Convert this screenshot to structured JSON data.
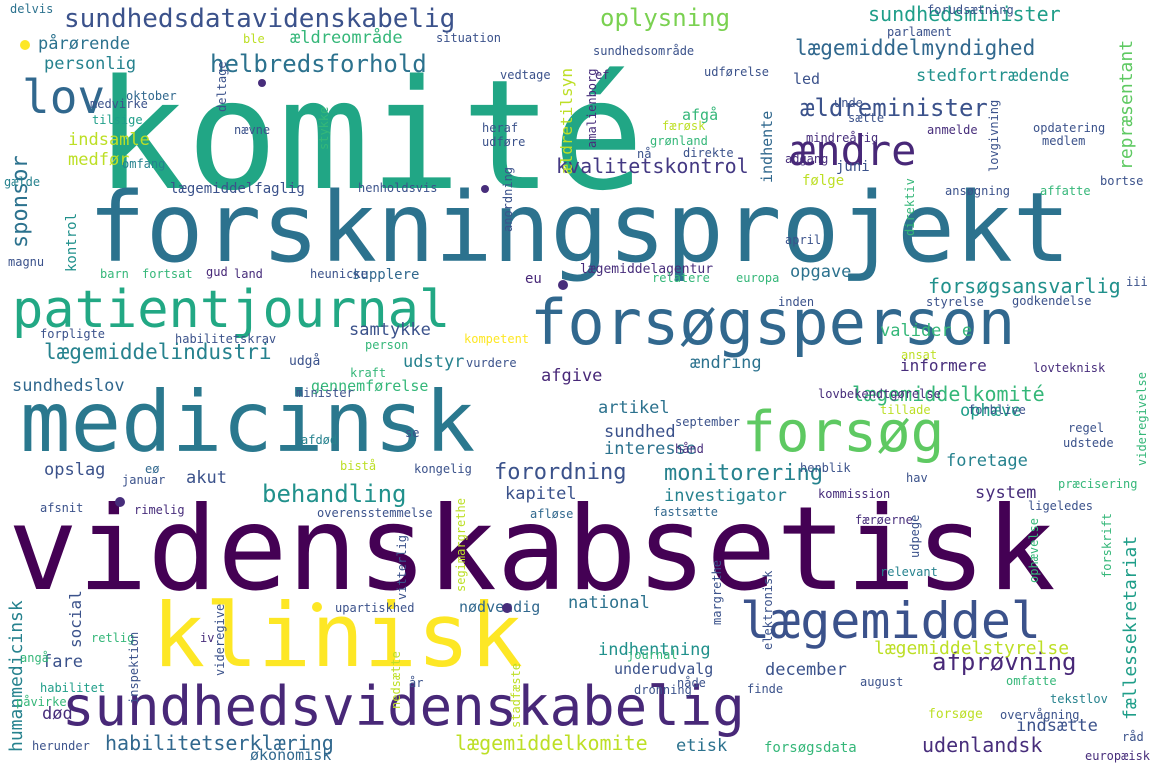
{
  "words": [
    {
      "text": "komité",
      "color": "#21a685"
    },
    {
      "text": "videnskabsetisk",
      "color": "#440154"
    },
    {
      "text": "forskningsprojekt",
      "color": "#2c728e"
    },
    {
      "text": "medicinsk",
      "color": "#2a788e"
    },
    {
      "text": "klinisk",
      "color": "#fde725"
    },
    {
      "text": "forsøgsperson",
      "color": "#31688e"
    },
    {
      "text": "sundhedsvidenskabelig",
      "color": "#482878"
    },
    {
      "text": "patientjournal",
      "color": "#22a884"
    },
    {
      "text": "lægemiddel",
      "color": "#3b528b"
    },
    {
      "text": "forsøg",
      "color": "#5ec962"
    },
    {
      "text": "lov",
      "color": "#31688e"
    },
    {
      "text": "ændre",
      "color": "#482878"
    },
    {
      "text": "sundhedsdatavidenskabelig",
      "color": "#3b528b"
    },
    {
      "text": "oplysning",
      "color": "#7ad151"
    },
    {
      "text": "sundhedsminister",
      "color": "#1f9e89"
    },
    {
      "text": "lægemiddelmyndighed",
      "color": "#31688e"
    },
    {
      "text": "helbredsforhold",
      "color": "#2c728e"
    },
    {
      "text": "ældreminister",
      "color": "#3b528b"
    },
    {
      "text": "lægemiddelindustri",
      "color": "#26828e"
    },
    {
      "text": "behandling",
      "color": "#21918c"
    },
    {
      "text": "afprøvning",
      "color": "#482878"
    },
    {
      "text": "monitorering",
      "color": "#26828e"
    },
    {
      "text": "forordning",
      "color": "#3b528b"
    },
    {
      "text": "habilitetserklæring",
      "color": "#31688e"
    },
    {
      "text": "lægemiddelkomite",
      "color": "#bddf26"
    },
    {
      "text": "lægemiddelkomité",
      "color": "#35b779"
    },
    {
      "text": "kvalitetskontrol",
      "color": "#443983"
    },
    {
      "text": "forsøgsansvarlig",
      "color": "#21918c"
    },
    {
      "text": "lægemiddelstyrelse",
      "color": "#bddf26"
    },
    {
      "text": "udenlandsk",
      "color": "#472d7b"
    },
    {
      "text": "sponsor",
      "color": "#2c728e"
    },
    {
      "text": "humanmedicinsk",
      "color": "#26828e"
    },
    {
      "text": "fællessekretariat",
      "color": "#1f9e89"
    },
    {
      "text": "repræsentant",
      "color": "#5ec962"
    },
    {
      "text": "ældretilsyn",
      "color": "#bddf26"
    },
    {
      "text": "stedfortrædende",
      "color": "#21918c"
    },
    {
      "text": "ældreområde",
      "color": "#35b779"
    },
    {
      "text": "pårørende",
      "color": "#2c728e"
    },
    {
      "text": "personlig",
      "color": "#26828e"
    },
    {
      "text": "indsamle",
      "color": "#bddf26"
    },
    {
      "text": "medfør",
      "color": "#bddf26"
    },
    {
      "text": "samtykke",
      "color": "#3b528b"
    },
    {
      "text": "udstyr",
      "color": "#26828e"
    },
    {
      "text": "opgave",
      "color": "#2c728e"
    },
    {
      "text": "valider e",
      "color": "#35b779"
    },
    {
      "text": "informere",
      "color": "#472d7b"
    },
    {
      "text": "sundhedslov",
      "color": "#31688e"
    },
    {
      "text": "gennemførelse",
      "color": "#35b779"
    },
    {
      "text": "afgive",
      "color": "#482878"
    },
    {
      "text": "ændring",
      "color": "#2c728e"
    },
    {
      "text": "artikel",
      "color": "#2c728e"
    },
    {
      "text": "sundhed",
      "color": "#3b528b"
    },
    {
      "text": "interesse",
      "color": "#2c728e"
    },
    {
      "text": "ophæve",
      "color": "#1f9e89"
    },
    {
      "text": "foretage",
      "color": "#26828e"
    },
    {
      "text": "opslag",
      "color": "#3b528b"
    },
    {
      "text": "akut",
      "color": "#3b528b"
    },
    {
      "text": "kapitel",
      "color": "#3b528b"
    },
    {
      "text": "investigator",
      "color": "#26828e"
    },
    {
      "text": "system",
      "color": "#472d7b"
    },
    {
      "text": "fare",
      "color": "#3b528b"
    },
    {
      "text": "social",
      "color": "#3b528b"
    },
    {
      "text": "national",
      "color": "#2c728e"
    },
    {
      "text": "nødvendig",
      "color": "#31688e"
    },
    {
      "text": "indhentning",
      "color": "#21918c"
    },
    {
      "text": "underudvalg",
      "color": "#3b528b"
    },
    {
      "text": "december",
      "color": "#3b528b"
    },
    {
      "text": "død",
      "color": "#472d7b"
    },
    {
      "text": "etisk",
      "color": "#2c728e"
    },
    {
      "text": "indsætte",
      "color": "#3b528b"
    },
    {
      "text": "afgå",
      "color": "#35b779"
    },
    {
      "text": "led",
      "color": "#3b528b"
    },
    {
      "text": "indhente",
      "color": "#31688e"
    },
    {
      "text": "juni",
      "color": "#3b528b"
    },
    {
      "text": "følge",
      "color": "#bddf26"
    },
    {
      "text": "supplere",
      "color": "#31688e"
    },
    {
      "text": "eu",
      "color": "#482878"
    },
    {
      "text": "økonomisk",
      "color": "#31688e"
    },
    {
      "text": "forsøge",
      "color": "#bddf26"
    },
    {
      "text": "forsøgsdata",
      "color": "#35b779"
    },
    {
      "text": "lægemiddelfaglig",
      "color": "#3b528b"
    },
    {
      "text": "lægemiddelagentur",
      "color": "#472d7b"
    },
    {
      "text": "udgå",
      "color": "#3b528b"
    },
    {
      "text": "kontrol",
      "color": "#21918c"
    },
    {
      "text": "delvis",
      "color": "#2c728e"
    },
    {
      "text": "medvirke",
      "color": "#3b528b"
    },
    {
      "text": "tilsige",
      "color": "#1f9e89"
    },
    {
      "text": "oktober",
      "color": "#31688e"
    },
    {
      "text": "omfang",
      "color": "#26828e"
    },
    {
      "text": "gælde",
      "color": "#26828e"
    },
    {
      "text": "magnu",
      "color": "#3b528b"
    },
    {
      "text": "barn",
      "color": "#35b779"
    },
    {
      "text": "fortsat",
      "color": "#35b779"
    },
    {
      "text": "land",
      "color": "#472d7b"
    },
    {
      "text": "heunicke",
      "color": "#3b528b"
    },
    {
      "text": "gud",
      "color": "#482878"
    },
    {
      "text": "forpligte",
      "color": "#3b528b"
    },
    {
      "text": "habilitetskrav",
      "color": "#3b528b"
    },
    {
      "text": "person",
      "color": "#35b779"
    },
    {
      "text": "kompetent",
      "color": "#fde725"
    },
    {
      "text": "kraft",
      "color": "#35b779"
    },
    {
      "text": "minister",
      "color": "#3b528b"
    },
    {
      "text": "vurdere",
      "color": "#3b528b"
    },
    {
      "text": "afdød",
      "color": "#26828e"
    },
    {
      "text": "se",
      "color": "#3b528b"
    },
    {
      "text": "afsnit",
      "color": "#3b528b"
    },
    {
      "text": "rimelig",
      "color": "#472d7b"
    },
    {
      "text": "januar",
      "color": "#3b528b"
    },
    {
      "text": "eø",
      "color": "#31688e"
    },
    {
      "text": "overensstemmelse",
      "color": "#3b528b"
    },
    {
      "text": "afløse",
      "color": "#31688e"
    },
    {
      "text": "fastsætte",
      "color": "#31688e"
    },
    {
      "text": "færøerne",
      "color": "#472d7b"
    },
    {
      "text": "udpege",
      "color": "#3b528b"
    },
    {
      "text": "upartiskhed",
      "color": "#3b528b"
    },
    {
      "text": "retlig",
      "color": "#35b779"
    },
    {
      "text": "angå",
      "color": "#35b779"
    },
    {
      "text": "habilitet",
      "color": "#1f9e89"
    },
    {
      "text": "påvirke",
      "color": "#35b779"
    },
    {
      "text": "herunder",
      "color": "#3b528b"
    },
    {
      "text": "iv",
      "color": "#472d7b"
    },
    {
      "text": "år",
      "color": "#3b528b"
    },
    {
      "text": "journal",
      "color": "#35b779"
    },
    {
      "text": "nåde",
      "color": "#3b528b"
    },
    {
      "text": "finde",
      "color": "#3b528b"
    },
    {
      "text": "dronning",
      "color": "#3b528b"
    },
    {
      "text": "omfatte",
      "color": "#35b779"
    },
    {
      "text": "tekstlov",
      "color": "#26828e"
    },
    {
      "text": "august",
      "color": "#3b528b"
    },
    {
      "text": "overvågning",
      "color": "#3b528b"
    },
    {
      "text": "europæisk",
      "color": "#472d7b"
    },
    {
      "text": "relevant",
      "color": "#26828e"
    },
    {
      "text": "margrethe",
      "color": "#3b528b"
    },
    {
      "text": "ligeledes",
      "color": "#3b528b"
    },
    {
      "text": "præcisering",
      "color": "#35b779"
    },
    {
      "text": "kommission",
      "color": "#472d7b"
    },
    {
      "text": "henblik",
      "color": "#3b528b"
    },
    {
      "text": "kongelig",
      "color": "#3b528b"
    },
    {
      "text": "bistå",
      "color": "#bddf26"
    },
    {
      "text": "hav",
      "color": "#3b528b"
    },
    {
      "text": "udstede",
      "color": "#3b528b"
    },
    {
      "text": "regel",
      "color": "#3b528b"
    },
    {
      "text": "forblive",
      "color": "#3b528b"
    },
    {
      "text": "tillade",
      "color": "#bddf26"
    },
    {
      "text": "hånd",
      "color": "#472d7b"
    },
    {
      "text": "september",
      "color": "#3b528b"
    },
    {
      "text": "lovbekendtgørelse",
      "color": "#472d7b"
    },
    {
      "text": "lovteknisk",
      "color": "#472d7b"
    },
    {
      "text": "ansat",
      "color": "#bddf26"
    },
    {
      "text": "relatere",
      "color": "#35b779"
    },
    {
      "text": "europa",
      "color": "#35b779"
    },
    {
      "text": "inden",
      "color": "#3b528b"
    },
    {
      "text": "styrelse",
      "color": "#3b528b"
    },
    {
      "text": "godkendelse",
      "color": "#3b528b"
    },
    {
      "text": "april",
      "color": "#3b528b"
    },
    {
      "text": "iii",
      "color": "#3b528b"
    },
    {
      "text": "ansøgning",
      "color": "#3b528b"
    },
    {
      "text": "affatte",
      "color": "#35b779"
    },
    {
      "text": "bortse",
      "color": "#3b528b"
    },
    {
      "text": "adgang",
      "color": "#472d7b"
    },
    {
      "text": "direkte",
      "color": "#3b528b"
    },
    {
      "text": "grønland",
      "color": "#35b779"
    },
    {
      "text": "nå",
      "color": "#3b528b"
    },
    {
      "text": "anmelde",
      "color": "#472d7b"
    },
    {
      "text": "medlem",
      "color": "#3b528b"
    },
    {
      "text": "mindreårig",
      "color": "#472d7b"
    },
    {
      "text": "opdatering",
      "color": "#3b528b"
    },
    {
      "text": "unde",
      "color": "#3b528b"
    },
    {
      "text": "sætte",
      "color": "#3b528b"
    },
    {
      "text": "heraf",
      "color": "#3b528b"
    },
    {
      "text": "udføre",
      "color": "#3b528b"
    },
    {
      "text": "færøsk",
      "color": "#bddf26"
    },
    {
      "text": "amalienborg",
      "color": "#472d7b"
    },
    {
      "text": "forudsætning",
      "color": "#3b528b"
    },
    {
      "text": "parlament",
      "color": "#3b528b"
    },
    {
      "text": "sundhedsområde",
      "color": "#3b528b"
    },
    {
      "text": "situation",
      "color": "#3b528b"
    },
    {
      "text": "ble",
      "color": "#bddf26"
    },
    {
      "text": "vedtage",
      "color": "#3b528b"
    },
    {
      "text": "udførelse",
      "color": "#3b528b"
    },
    {
      "text": "ef",
      "color": "#472d7b"
    },
    {
      "text": "nævne",
      "color": "#3b528b"
    },
    {
      "text": "stykke",
      "color": "#35b779"
    },
    {
      "text": "henholdsvis",
      "color": "#3b528b"
    },
    {
      "text": "deltage",
      "color": "#3b528b"
    },
    {
      "text": "anordning",
      "color": "#3b528b"
    },
    {
      "text": "direktiv",
      "color": "#35b779"
    },
    {
      "text": "lovgivning",
      "color": "#3b528b"
    },
    {
      "text": "videregivelse",
      "color": "#35b779"
    },
    {
      "text": "ophævelse",
      "color": "#35b779"
    },
    {
      "text": "forskrift",
      "color": "#35b779"
    },
    {
      "text": "råd",
      "color": "#3b528b"
    },
    {
      "text": "inspektion",
      "color": "#3b528b"
    },
    {
      "text": "videregive",
      "color": "#3b528b"
    },
    {
      "text": "nedsætte",
      "color": "#bddf26"
    },
    {
      "text": "vitterlig",
      "color": "#3b528b"
    },
    {
      "text": "segimargrethe",
      "color": "#bddf26"
    },
    {
      "text": "stadfæste",
      "color": "#bddf26"
    },
    {
      "text": "elektronisk",
      "color": "#3b528b"
    }
  ]
}
